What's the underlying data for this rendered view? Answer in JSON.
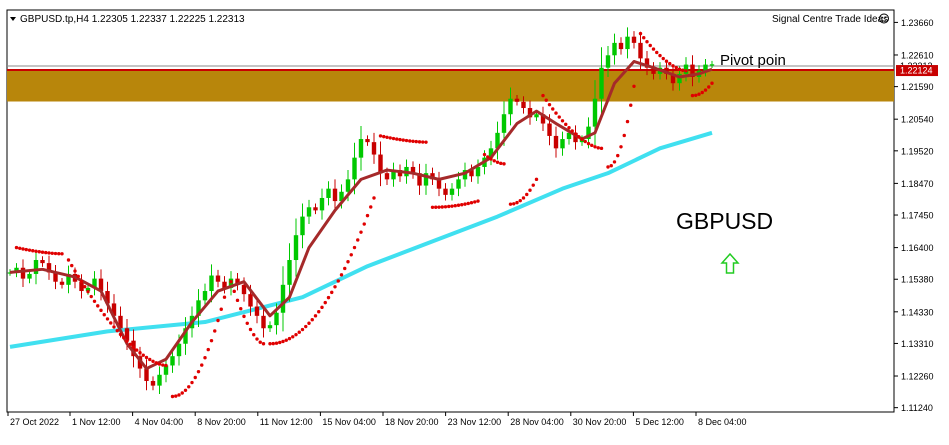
{
  "header": {
    "title": "GBPUSD.tp,H4  1.22305 1.22337 1.22225 1.22313",
    "indicator_label": "Signal Centre Trade Ideas"
  },
  "annotations": {
    "symbol_text": "GBPUSD",
    "pivot_text": "Pivot poin"
  },
  "colors": {
    "bull": "#00c800",
    "bear": "#c80000",
    "zone": "#b8860b",
    "pivot_line": "#c80000",
    "ema_fast": "#a52a2a",
    "ema_slow": "#40e0f0",
    "sar": "#e00000",
    "arrow": "#22cc22"
  },
  "chart_data": {
    "type": "candlestick",
    "symbol": "GBPUSD",
    "timeframe": "H4",
    "ylim": [
      1.111,
      1.2406
    ],
    "y_ticks": [
      "1.23660",
      "1.22610",
      "1.21590",
      "1.20540",
      "1.19520",
      "1.18470",
      "1.17450",
      "1.16400",
      "1.15380",
      "1.14330",
      "1.13310",
      "1.12260",
      "1.11240"
    ],
    "x_ticks": [
      "27 Oct 2022",
      "1 Nov 12:00",
      "4 Nov 04:00",
      "8 Nov 20:00",
      "11 Nov 12:00",
      "15 Nov 04:00",
      "18 Nov 20:00",
      "23 Nov 12:00",
      "28 Nov 04:00",
      "30 Nov 20:00",
      "5 Dec 12:00",
      "8 Dec 04:00"
    ],
    "current_price": "1.22313",
    "pivot_price_label": "1.22124",
    "pivot_price": 1.22124,
    "zone_low": 1.2111,
    "zone_high": 1.2212,
    "closes": [
      1.156,
      1.1575,
      1.154,
      1.1555,
      1.16,
      1.159,
      1.156,
      1.153,
      1.152,
      1.1555,
      1.153,
      1.15,
      1.151,
      1.154,
      1.15,
      1.146,
      1.142,
      1.138,
      1.134,
      1.129,
      1.125,
      1.121,
      1.1195,
      1.123,
      1.126,
      1.129,
      1.133,
      1.138,
      1.142,
      1.147,
      1.15,
      1.155,
      1.153,
      1.151,
      1.154,
      1.152,
      1.149,
      1.145,
      1.142,
      1.138,
      1.139,
      1.143,
      1.152,
      1.16,
      1.168,
      1.174,
      1.177,
      1.176,
      1.18,
      1.183,
      1.179,
      1.182,
      1.186,
      1.193,
      1.199,
      1.198,
      1.194,
      1.188,
      1.186,
      1.189,
      1.187,
      1.19,
      1.188,
      1.184,
      1.188,
      1.186,
      1.183,
      1.181,
      1.183,
      1.186,
      1.189,
      1.187,
      1.19,
      1.193,
      1.196,
      1.201,
      1.207,
      1.212,
      1.211,
      1.209,
      1.206,
      1.207,
      1.204,
      1.2,
      1.196,
      1.199,
      1.201,
      1.198,
      1.199,
      1.203,
      1.212,
      1.222,
      1.226,
      1.23,
      1.228,
      1.232,
      1.23,
      1.225,
      1.222,
      1.22,
      1.222,
      1.22,
      1.217,
      1.22,
      1.223,
      1.219,
      1.221,
      1.223,
      1.2231
    ],
    "ema_fast_points": [
      [
        0,
        1.156
      ],
      [
        5,
        1.157
      ],
      [
        10,
        1.1545
      ],
      [
        14,
        1.15
      ],
      [
        18,
        1.133
      ],
      [
        21,
        1.125
      ],
      [
        24,
        1.128
      ],
      [
        28,
        1.14
      ],
      [
        32,
        1.15
      ],
      [
        36,
        1.153
      ],
      [
        40,
        1.142
      ],
      [
        43,
        1.148
      ],
      [
        46,
        1.164
      ],
      [
        50,
        1.176
      ],
      [
        54,
        1.186
      ],
      [
        58,
        1.189
      ],
      [
        62,
        1.188
      ],
      [
        66,
        1.186
      ],
      [
        70,
        1.188
      ],
      [
        74,
        1.193
      ],
      [
        78,
        1.204
      ],
      [
        81,
        1.208
      ],
      [
        84,
        1.204
      ],
      [
        88,
        1.199
      ],
      [
        90,
        1.201
      ],
      [
        93,
        1.217
      ],
      [
        96,
        1.224
      ],
      [
        99,
        1.222
      ],
      [
        103,
        1.219
      ],
      [
        106,
        1.22
      ],
      [
        108,
        1.2215
      ]
    ],
    "ema_slow_points": [
      [
        0,
        1.132
      ],
      [
        15,
        1.137
      ],
      [
        30,
        1.14
      ],
      [
        45,
        1.148
      ],
      [
        55,
        1.158
      ],
      [
        65,
        1.166
      ],
      [
        75,
        1.174
      ],
      [
        85,
        1.183
      ],
      [
        92,
        1.188
      ],
      [
        100,
        1.196
      ],
      [
        108,
        1.201
      ]
    ],
    "sar_segments": [
      {
        "side": "above",
        "from": 1,
        "to": 8,
        "start": 1.164,
        "end": 1.162
      },
      {
        "side": "above",
        "from": 9,
        "to": 24,
        "start": 1.16,
        "end": 1.126
      },
      {
        "side": "below",
        "from": 25,
        "to": 33,
        "start": 1.116,
        "end": 1.148
      },
      {
        "side": "above",
        "from": 34,
        "to": 39,
        "start": 1.153,
        "end": 1.133
      },
      {
        "side": "below",
        "from": 40,
        "to": 56,
        "start": 1.133,
        "end": 1.18
      },
      {
        "side": "above",
        "from": 57,
        "to": 64,
        "start": 1.2,
        "end": 1.198
      },
      {
        "side": "below",
        "from": 65,
        "to": 72,
        "start": 1.177,
        "end": 1.179
      },
      {
        "side": "above",
        "from": 73,
        "to": 76,
        "start": 1.194,
        "end": 1.191
      },
      {
        "side": "below",
        "from": 77,
        "to": 81,
        "start": 1.178,
        "end": 1.186
      },
      {
        "side": "above",
        "from": 82,
        "to": 91,
        "start": 1.213,
        "end": 1.196
      },
      {
        "side": "below",
        "from": 92,
        "to": 96,
        "start": 1.19,
        "end": 1.216
      },
      {
        "side": "above",
        "from": 97,
        "to": 104,
        "start": 1.233,
        "end": 1.221
      },
      {
        "side": "below",
        "from": 105,
        "to": 108,
        "start": 1.213,
        "end": 1.217
      }
    ]
  }
}
